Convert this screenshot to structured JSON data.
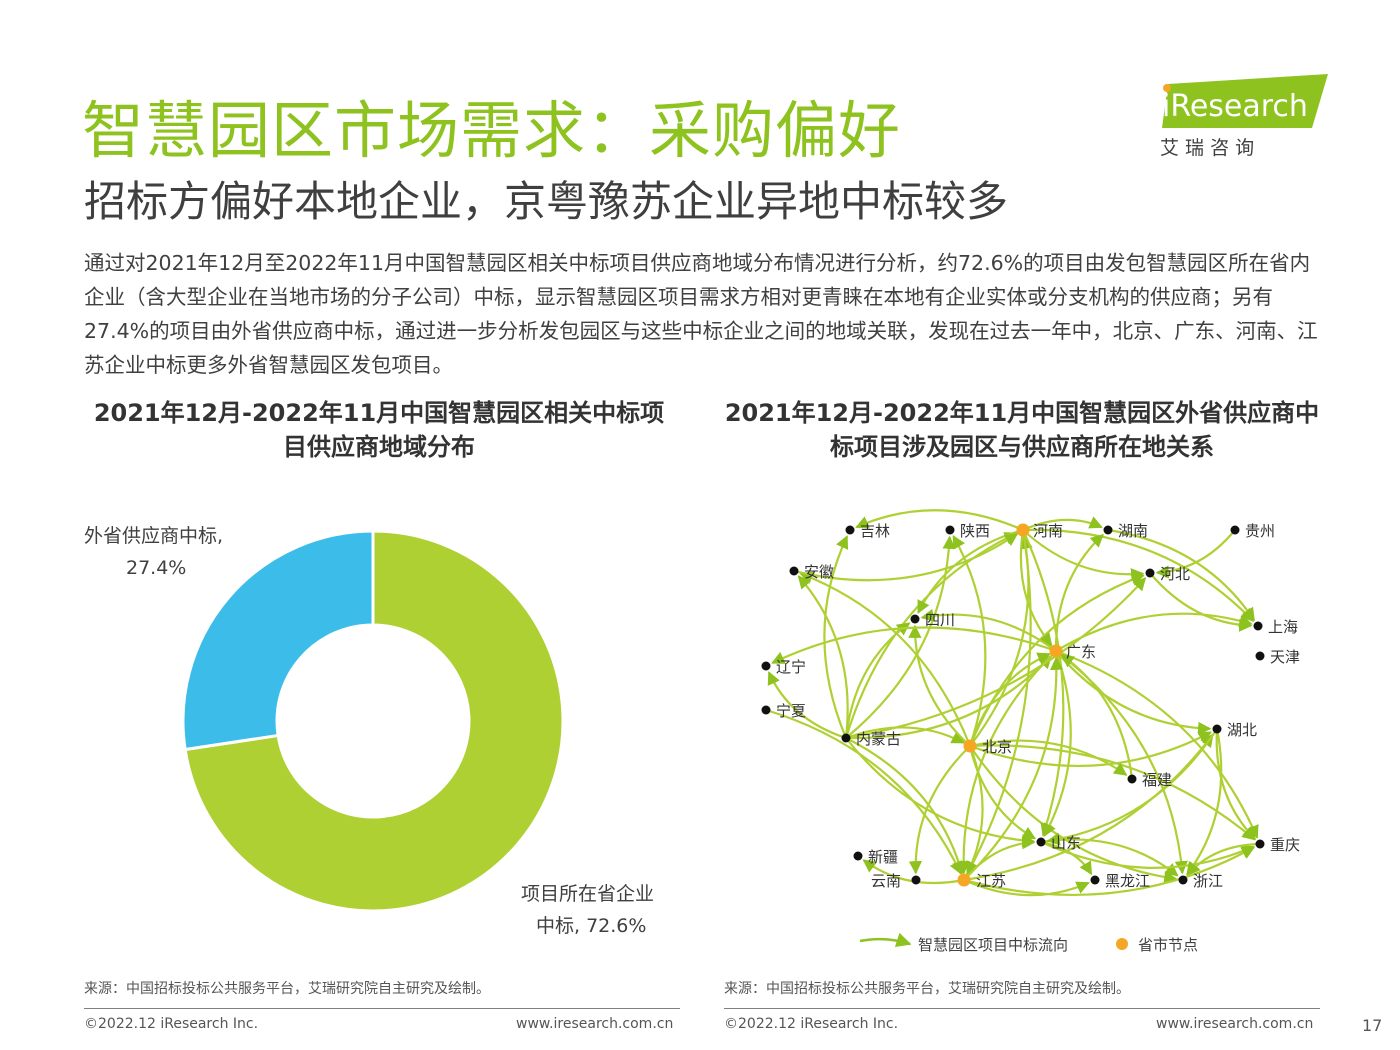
{
  "header": {
    "title": "智慧园区市场需求：采购偏好",
    "subtitle": "招标方偏好本地企业，京粤豫苏企业异地中标较多",
    "body": "通过对2021年12月至2022年11月中国智慧园区相关中标项目供应商地域分布情况进行分析，约72.6%的项目由发包智慧园区所在省内企业（含大型企业在当地市场的分子公司）中标，显示智慧园区项目需求方相对更青睐在本地有企业实体或分支机构的供应商；另有27.4%的项目由外省供应商中标，通过进一步分析发包园区与这些中标企业之间的地域关联，发现在过去一年中，北京、广东、河南、江苏企业中标更多外省智慧园区发包项目。"
  },
  "logo": {
    "brand": "iResearch",
    "cn": "艾 瑞 咨 询"
  },
  "colors": {
    "green": "#8dc21f",
    "donut_green": "#afd033",
    "blue": "#3cbde9",
    "orange": "#f5a623",
    "node": "#111111"
  },
  "chart_data": [
    {
      "type": "pie",
      "title": "2021年12月-2022年11月中国智慧园区相关中标项目供应商地域分布",
      "slices": [
        {
          "label": "项目所在省企业中标",
          "value": 72.6,
          "display": "72.6%",
          "color": "#afd033"
        },
        {
          "label": "外省供应商中标",
          "value": 27.4,
          "display": "27.4%",
          "color": "#3cbde9"
        }
      ],
      "label_lines": {
        "in_province": [
          "项目所在省企业",
          "中标, 72.6%"
        ],
        "out_province": [
          "外省供应商中标,",
          "27.4%"
        ]
      }
    },
    {
      "type": "network",
      "title": "2021年12月-2022年11月中国智慧园区外省供应商中标项目涉及园区与供应商所在地关系",
      "nodes": [
        {
          "id": "jilin",
          "label": "吉林",
          "hub": false
        },
        {
          "id": "shaanxi",
          "label": "陕西",
          "hub": false
        },
        {
          "id": "henan",
          "label": "河南",
          "hub": true
        },
        {
          "id": "hunan",
          "label": "湖南",
          "hub": false
        },
        {
          "id": "guizhou",
          "label": "贵州",
          "hub": false
        },
        {
          "id": "anhui",
          "label": "安徽",
          "hub": false
        },
        {
          "id": "hebei",
          "label": "河北",
          "hub": false
        },
        {
          "id": "sichuan",
          "label": "四川",
          "hub": false
        },
        {
          "id": "shanghai",
          "label": "上海",
          "hub": false
        },
        {
          "id": "guangdong",
          "label": "广东",
          "hub": true
        },
        {
          "id": "tianjin",
          "label": "天津",
          "hub": false
        },
        {
          "id": "liaoning",
          "label": "辽宁",
          "hub": false
        },
        {
          "id": "ningxia",
          "label": "宁夏",
          "hub": false
        },
        {
          "id": "hubei",
          "label": "湖北",
          "hub": false
        },
        {
          "id": "neimenggu",
          "label": "内蒙古",
          "hub": false
        },
        {
          "id": "beijing",
          "label": "北京",
          "hub": true
        },
        {
          "id": "fujian",
          "label": "福建",
          "hub": false
        },
        {
          "id": "shandong",
          "label": "山东",
          "hub": false
        },
        {
          "id": "chongqing",
          "label": "重庆",
          "hub": false
        },
        {
          "id": "xinjiang",
          "label": "新疆",
          "hub": false
        },
        {
          "id": "yunnan",
          "label": "云南",
          "hub": false
        },
        {
          "id": "jiangsu",
          "label": "江苏",
          "hub": true
        },
        {
          "id": "heilongjiang",
          "label": "黑龙江",
          "hub": false
        },
        {
          "id": "zhejiang",
          "label": "浙江",
          "hub": false
        }
      ],
      "edges": [
        [
          "neimenggu",
          "jilin"
        ],
        [
          "neimenggu",
          "shaanxi"
        ],
        [
          "neimenggu",
          "henan"
        ],
        [
          "neimenggu",
          "anhui"
        ],
        [
          "neimenggu",
          "sichuan"
        ],
        [
          "neimenggu",
          "guangdong"
        ],
        [
          "neimenggu",
          "beijing"
        ],
        [
          "neimenggu",
          "hebei"
        ],
        [
          "neimenggu",
          "jiangsu"
        ],
        [
          "neimenggu",
          "shandong"
        ],
        [
          "neimenggu",
          "liaoning"
        ],
        [
          "beijing",
          "henan"
        ],
        [
          "beijing",
          "guangdong"
        ],
        [
          "beijing",
          "shaanxi"
        ],
        [
          "beijing",
          "sichuan"
        ],
        [
          "beijing",
          "hubei"
        ],
        [
          "beijing",
          "chongqing"
        ],
        [
          "beijing",
          "shandong"
        ],
        [
          "beijing",
          "jiangsu"
        ],
        [
          "beijing",
          "yunnan"
        ],
        [
          "beijing",
          "fujian"
        ],
        [
          "beijing",
          "zhejiang"
        ],
        [
          "beijing",
          "hebei"
        ],
        [
          "beijing",
          "anhui"
        ],
        [
          "henan",
          "hunan"
        ],
        [
          "henan",
          "hebei"
        ],
        [
          "henan",
          "shanghai"
        ],
        [
          "henan",
          "guangdong"
        ],
        [
          "henan",
          "jiangsu"
        ],
        [
          "henan",
          "sichuan"
        ],
        [
          "henan",
          "shandong"
        ],
        [
          "henan",
          "jilin"
        ],
        [
          "guangdong",
          "shanghai"
        ],
        [
          "guangdong",
          "hubei"
        ],
        [
          "guangdong",
          "hunan"
        ],
        [
          "guangdong",
          "sichuan"
        ],
        [
          "guangdong",
          "shandong"
        ],
        [
          "guangdong",
          "jiangsu"
        ],
        [
          "guangdong",
          "chongqing"
        ],
        [
          "guangdong",
          "liaoning"
        ],
        [
          "guangdong",
          "zhejiang"
        ],
        [
          "jiangsu",
          "hubei"
        ],
        [
          "jiangsu",
          "shandong"
        ],
        [
          "jiangsu",
          "heilongjiang"
        ],
        [
          "jiangsu",
          "xinjiang"
        ],
        [
          "jiangsu",
          "guangdong"
        ],
        [
          "shandong",
          "zhejiang"
        ],
        [
          "shandong",
          "chongqing"
        ],
        [
          "shandong",
          "heilongjiang"
        ],
        [
          "hubei",
          "chongqing"
        ],
        [
          "hubei",
          "zhejiang"
        ],
        [
          "hebei",
          "shanghai"
        ],
        [
          "guizhou",
          "hebei"
        ],
        [
          "chongqing",
          "zhejiang"
        ],
        [
          "ningxia",
          "jiangsu"
        ],
        [
          "fujian",
          "guangdong"
        ],
        [
          "hunan",
          "shanghai"
        ],
        [
          "anhui",
          "henan"
        ],
        [
          "hubei",
          "shandong"
        ],
        [
          "jiangsu",
          "chongqing"
        ]
      ]
    }
  ],
  "legend": {
    "flow": "智慧园区项目中标流向",
    "hub": "省市节点"
  },
  "footer": {
    "source": "来源：中国招标投标公共服务平台，艾瑞研究院自主研究及绘制。",
    "copyright": "©2022.12 iResearch Inc.",
    "url": "www.iresearch.com.cn",
    "page": "17"
  }
}
